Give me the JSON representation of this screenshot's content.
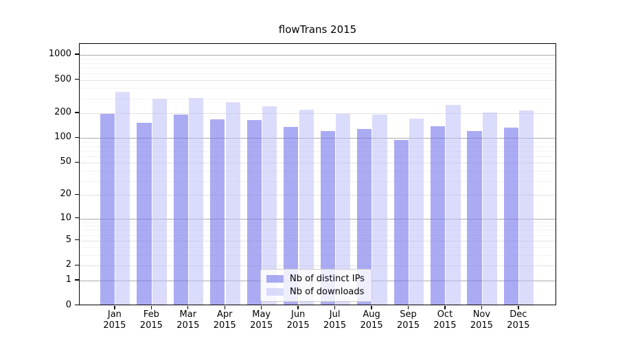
{
  "colors": {
    "bar_ips": "rgba(120,120,235,0.62)",
    "bar_downloads": "rgba(190,190,248,0.55)",
    "grid_major": "#ababab",
    "grid_mid": "#e2e2e2",
    "grid_minor": "#f2f2f2",
    "axis": "#000000",
    "legend_bg": "rgba(255,255,255,0.8)",
    "legend_border": "#cccccc",
    "text": "#000000"
  },
  "chart_data": {
    "type": "bar",
    "title": "flowTrans 2015",
    "x_months": [
      "Jan",
      "Feb",
      "Mar",
      "Apr",
      "May",
      "Jun",
      "Jul",
      "Aug",
      "Sep",
      "Oct",
      "Nov",
      "Dec"
    ],
    "x_year": "2015",
    "series": [
      {
        "name": "Nb of distinct IPs",
        "values": [
          197,
          152,
          193,
          167,
          165,
          137,
          122,
          128,
          95,
          140,
          122,
          134
        ]
      },
      {
        "name": "Nb of downloads",
        "values": [
          362,
          295,
          303,
          270,
          243,
          219,
          197,
          191,
          170,
          251,
          204,
          216
        ]
      }
    ],
    "yscale": "log1p",
    "y_ticks": [
      0,
      1,
      2,
      5,
      10,
      20,
      50,
      100,
      200,
      500,
      1000
    ],
    "y_major_gridlines": [
      1,
      10,
      100,
      1000
    ],
    "y_mid_gridlines": [
      2,
      5,
      20,
      50,
      200,
      500
    ],
    "y_minor_gridlines": [
      3,
      4,
      6,
      7,
      8,
      9,
      30,
      40,
      60,
      70,
      80,
      90,
      300,
      400,
      600,
      700,
      800,
      900
    ],
    "ylim": [
      0,
      1360
    ],
    "grid": true,
    "legend_position": "lower center"
  }
}
